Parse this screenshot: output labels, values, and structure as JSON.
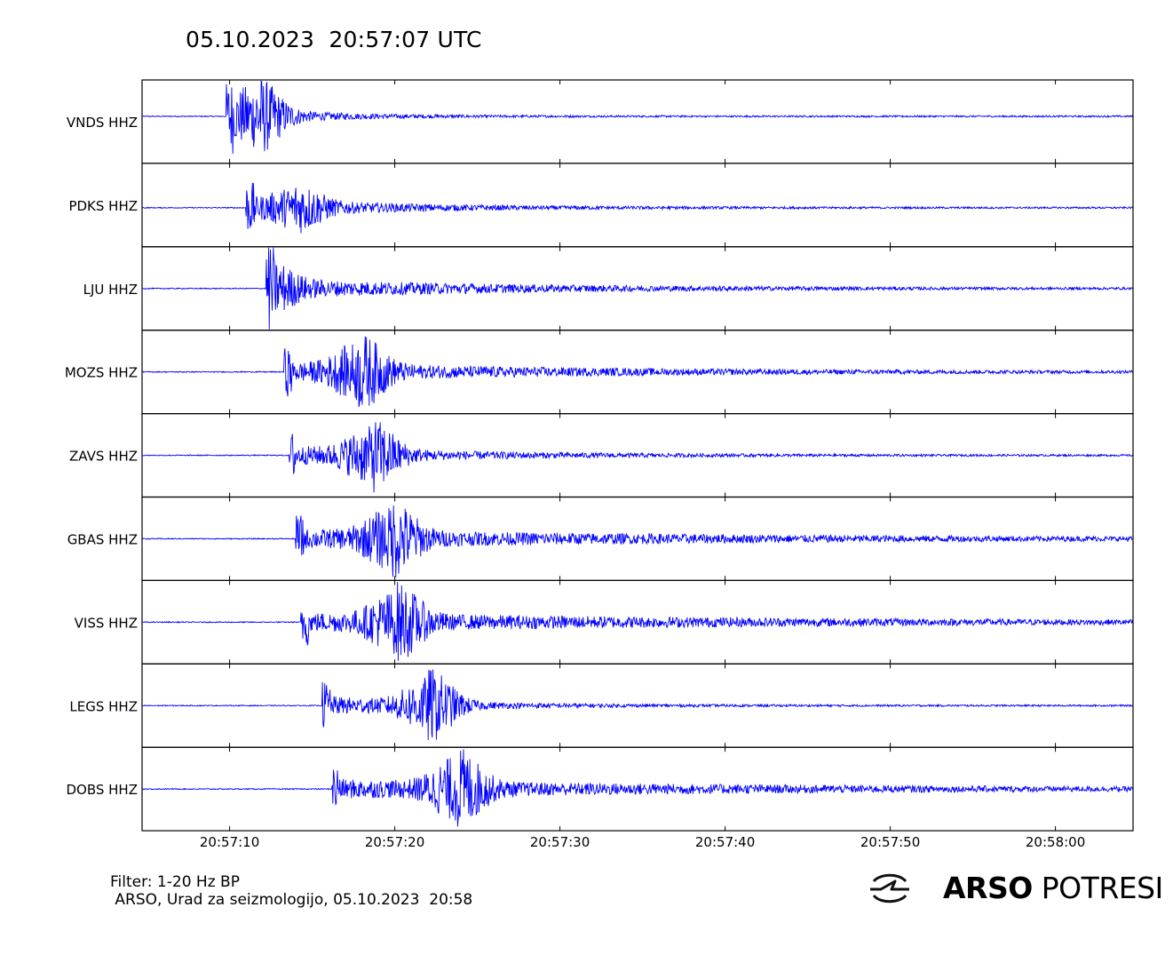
{
  "title": "05.10.2023  20:57:07 UTC",
  "footer": {
    "filter": "Filter: 1-20 Hz BP",
    "credit": " ARSO, Urad za seizmologijo, 05.10.2023  20:58"
  },
  "logo": {
    "brand": "ARSO",
    "product": "POTRESI"
  },
  "colors": {
    "trace": "#0000ff",
    "frame": "#000000",
    "background": "#ffffff"
  },
  "chart_data": {
    "type": "line",
    "title": "05.10.2023  20:57:07 UTC",
    "x_unit": "seconds after 20:57:07 UTC",
    "xlim": [
      0,
      60
    ],
    "x_ticks": [
      {
        "t": 5.3,
        "label": "20:57:10"
      },
      {
        "t": 15.3,
        "label": "20:57:20"
      },
      {
        "t": 25.3,
        "label": "20:57:30"
      },
      {
        "t": 35.3,
        "label": "20:57:40"
      },
      {
        "t": 45.3,
        "label": "20:57:50"
      },
      {
        "t": 55.3,
        "label": "20:58:00"
      }
    ],
    "series": [
      {
        "name": "VNDS HHZ",
        "onset": 5.1,
        "peak_time": 6.8,
        "peak_amp": 1.0,
        "coda": 3.5
      },
      {
        "name": "PDKS HHZ",
        "onset": 6.3,
        "peak_time": 9.3,
        "peak_amp": 0.55,
        "coda": 6
      },
      {
        "name": "LJU HHZ",
        "onset": 7.5,
        "peak_time": 7.6,
        "peak_amp": 0.6,
        "coda": 10
      },
      {
        "name": "MOZS HHZ",
        "onset": 8.6,
        "peak_time": 13.1,
        "peak_amp": 0.9,
        "coda": 12
      },
      {
        "name": "ZAVS HHZ",
        "onset": 8.9,
        "peak_time": 13.8,
        "peak_amp": 0.9,
        "coda": 7
      },
      {
        "name": "GBAS HHZ",
        "onset": 9.3,
        "peak_time": 15.0,
        "peak_amp": 0.95,
        "coda": 18
      },
      {
        "name": "VISS HHZ",
        "onset": 9.6,
        "peak_time": 15.3,
        "peak_amp": 0.95,
        "coda": 20
      },
      {
        "name": "LEGS HHZ",
        "onset": 10.9,
        "peak_time": 17.3,
        "peak_amp": 0.95,
        "coda": 5
      },
      {
        "name": "DOBS HHZ",
        "onset": 11.5,
        "peak_time": 19.0,
        "peak_amp": 1.0,
        "coda": 18
      }
    ]
  }
}
